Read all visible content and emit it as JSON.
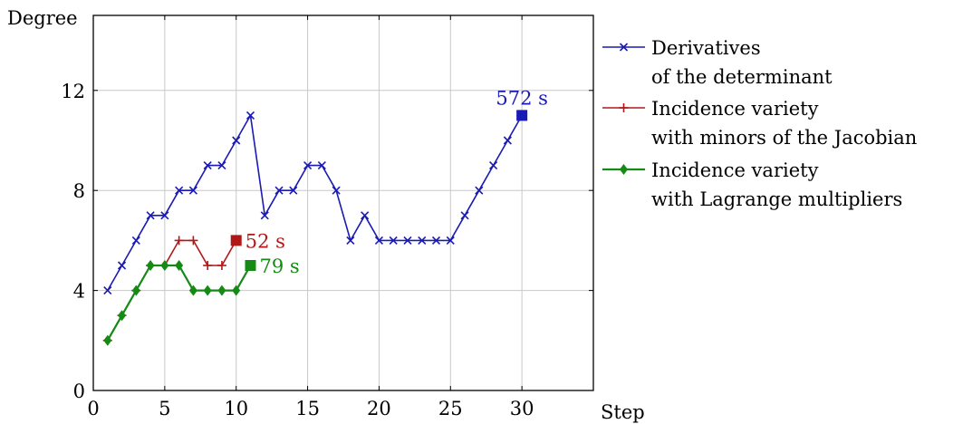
{
  "chart_data": {
    "type": "line",
    "xlabel": "Step",
    "ylabel": "Degree",
    "xlim": [
      0,
      35
    ],
    "ylim": [
      0,
      15
    ],
    "x_ticks": [
      0,
      5,
      10,
      15,
      20,
      25,
      30
    ],
    "y_ticks": [
      0,
      4,
      8,
      12
    ],
    "grid": true,
    "legend_position": "outside-right",
    "series": [
      {
        "name_lines": [
          "Derivatives",
          "of the determinant"
        ],
        "color": "#1a1ab5",
        "marker": "x",
        "x": [
          1,
          2,
          3,
          4,
          5,
          6,
          7,
          8,
          9,
          10,
          11,
          12,
          13,
          14,
          15,
          16,
          17,
          18,
          19,
          20,
          21,
          22,
          23,
          24,
          25,
          26,
          27,
          28,
          29,
          30
        ],
        "y": [
          4,
          5,
          6,
          7,
          7,
          8,
          8,
          9,
          9,
          10,
          11,
          7,
          8,
          8,
          9,
          9,
          8,
          6,
          7,
          6,
          6,
          6,
          6,
          6,
          6,
          7,
          8,
          9,
          10,
          11
        ],
        "end_label": "572 s"
      },
      {
        "name_lines": [
          "Incidence variety",
          "with minors of the Jacobian"
        ],
        "color": "#b01818",
        "marker": "plus",
        "x": [
          1,
          2,
          3,
          4,
          5,
          6,
          7,
          8,
          9,
          10
        ],
        "y": [
          2,
          3,
          4,
          5,
          5,
          6,
          6,
          5,
          5,
          6
        ],
        "end_label": "52 s"
      },
      {
        "name_lines": [
          "Incidence variety",
          "with Lagrange multipliers"
        ],
        "color": "#158a15",
        "marker": "diamond",
        "x": [
          1,
          2,
          3,
          4,
          5,
          6,
          7,
          8,
          9,
          10,
          11
        ],
        "y": [
          2,
          3,
          4,
          5,
          5,
          5,
          4,
          4,
          4,
          4,
          5
        ],
        "end_label": "79 s"
      }
    ]
  }
}
